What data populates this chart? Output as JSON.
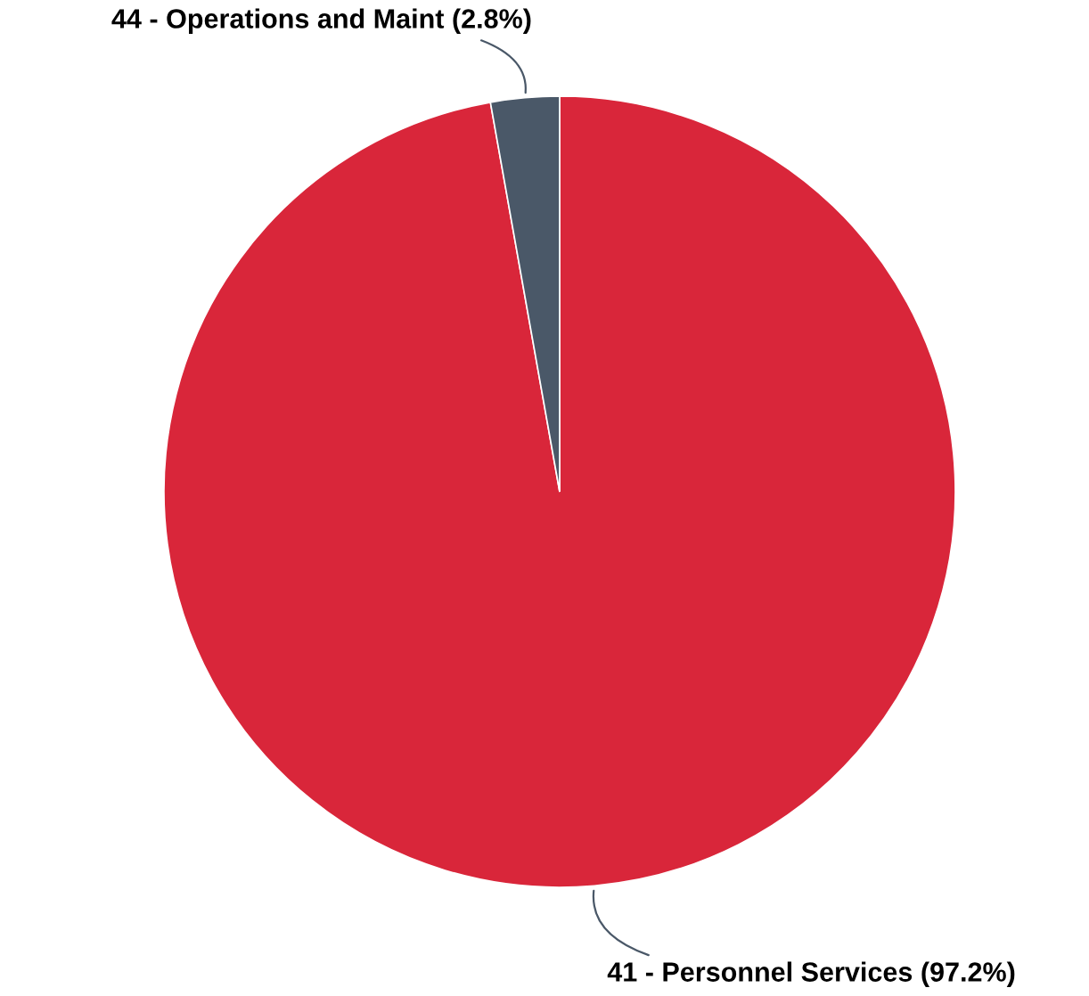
{
  "chart_data": {
    "type": "pie",
    "categories": [
      "41 - Personnel Services (97.2%)",
      "44 - Operations and Maint (2.8%)"
    ],
    "values": [
      97.2,
      2.8
    ],
    "colors": [
      "#d9263a",
      "#4a5868"
    ],
    "legend": false
  }
}
